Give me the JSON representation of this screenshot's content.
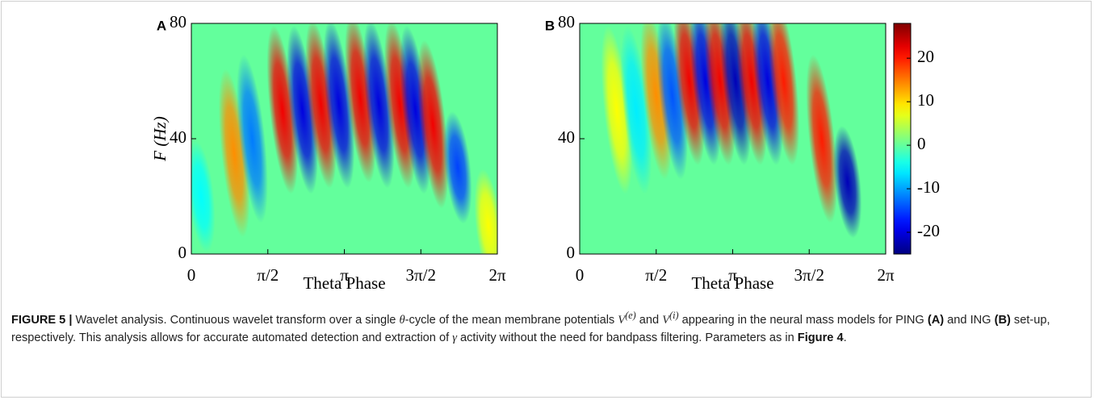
{
  "chart_data": [
    {
      "type": "heatmap",
      "panel": "A",
      "xlabel": "Theta Phase",
      "ylabel": "F (Hz)",
      "xlim": [
        0,
        6.2832
      ],
      "ylim": [
        0,
        80
      ],
      "xticks": [
        0,
        {
          "value": 1.5708,
          "label": "π/2"
        },
        {
          "value": 3.1416,
          "label": "π"
        },
        {
          "value": 4.7124,
          "label": "3π/2"
        },
        {
          "value": 6.2832,
          "label": "2π"
        }
      ],
      "yticks": [
        0,
        40,
        80
      ],
      "blobs": [
        {
          "x": 0.88,
          "y": 35,
          "value": 14
        },
        {
          "x": 1.25,
          "y": 40,
          "value": -12
        },
        {
          "x": 0.2,
          "y": 20,
          "value": -5
        },
        {
          "x": 1.87,
          "y": 50,
          "value": 22
        },
        {
          "x": 2.28,
          "y": 50,
          "value": -20
        },
        {
          "x": 2.66,
          "y": 52,
          "value": 22
        },
        {
          "x": 3.03,
          "y": 52,
          "value": -20
        },
        {
          "x": 3.47,
          "y": 54,
          "value": 22
        },
        {
          "x": 3.85,
          "y": 52,
          "value": -20
        },
        {
          "x": 4.28,
          "y": 52,
          "value": 22
        },
        {
          "x": 4.6,
          "y": 50,
          "value": -20
        },
        {
          "x": 4.96,
          "y": 45,
          "value": 22
        },
        {
          "x": 5.47,
          "y": 30,
          "value": -15
        },
        {
          "x": 6.1,
          "y": 10,
          "value": 8
        }
      ]
    },
    {
      "type": "heatmap",
      "panel": "B",
      "xlabel": "Theta Phase",
      "xlim": [
        0,
        6.2832
      ],
      "ylim": [
        0,
        80
      ],
      "xticks": [
        0,
        {
          "value": 1.5708,
          "label": "π/2"
        },
        {
          "value": 3.1416,
          "label": "π"
        },
        {
          "value": 4.7124,
          "label": "3π/2"
        },
        {
          "value": 6.2832,
          "label": "2π"
        }
      ],
      "yticks": [
        0,
        40,
        80
      ],
      "blobs": [
        {
          "x": 0.76,
          "y": 50,
          "value": 8
        },
        {
          "x": 1.16,
          "y": 50,
          "value": -6
        },
        {
          "x": 1.57,
          "y": 55,
          "value": 14
        },
        {
          "x": 1.9,
          "y": 55,
          "value": -14
        },
        {
          "x": 2.25,
          "y": 60,
          "value": 22
        },
        {
          "x": 2.58,
          "y": 60,
          "value": -20
        },
        {
          "x": 2.88,
          "y": 60,
          "value": 22
        },
        {
          "x": 3.2,
          "y": 60,
          "value": -22
        },
        {
          "x": 3.53,
          "y": 60,
          "value": 22
        },
        {
          "x": 3.86,
          "y": 60,
          "value": -20
        },
        {
          "x": 4.19,
          "y": 60,
          "value": 20
        },
        {
          "x": 4.97,
          "y": 40,
          "value": 20
        },
        {
          "x": 5.5,
          "y": 25,
          "value": -22
        }
      ]
    }
  ],
  "colorbar": {
    "clim": [
      -25,
      28
    ],
    "ticks": [
      20,
      10,
      0,
      -10,
      -20
    ]
  },
  "caption": [
    "FIGURE 5 |",
    " Wavelet analysis. Continuous wavelet transform over a single ",
    "θ",
    "-cycle of the mean membrane potentials ",
    "V",
    "(e)",
    " and ",
    "V",
    "(i)",
    " appearing in the neural mass models for PING ",
    "(A)",
    " and ING ",
    "(B)",
    " set-up, respectively. This analysis allows for accurate automated detection and extraction of ",
    "γ",
    " activity without the need for bandpass filtering. Parameters as in ",
    "Figure 4",
    "."
  ]
}
